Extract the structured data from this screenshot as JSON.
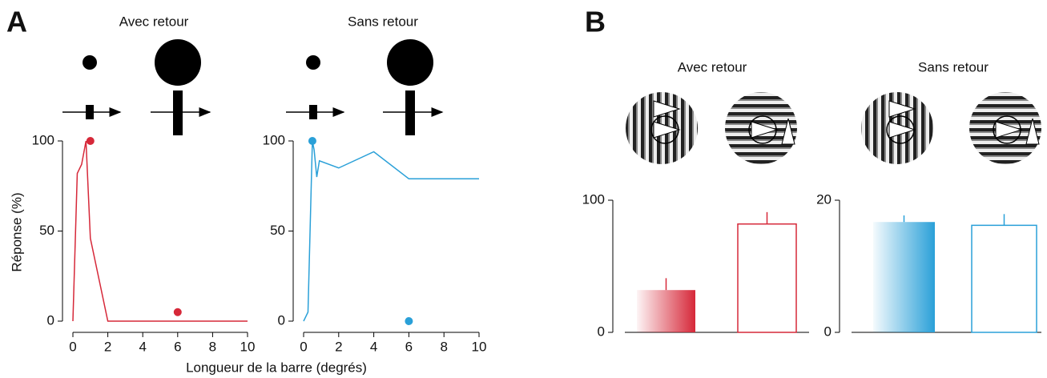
{
  "panel_labels": [
    "A",
    "B"
  ],
  "chart_data": [
    {
      "type": "line",
      "title": "Avec retour",
      "ylabel": "Réponse (%)",
      "xlabel": "Longueur de la barre (degrés)",
      "xlim": [
        0,
        10
      ],
      "xticks": [
        0,
        2,
        4,
        6,
        8,
        10
      ],
      "ylim": [
        0,
        100
      ],
      "yticks": [
        0,
        50,
        100
      ],
      "series": [
        {
          "color": "#d62839",
          "x": [
            0,
            0.25,
            0.5,
            0.75,
            1,
            2,
            10
          ],
          "values": [
            0,
            82,
            87,
            100,
            46,
            0,
            0
          ]
        }
      ],
      "points": {
        "color": "#d62839",
        "x": [
          1,
          6
        ],
        "values": [
          100,
          5
        ]
      }
    },
    {
      "type": "line",
      "title": "Sans retour",
      "xlim": [
        0,
        10
      ],
      "xticks": [
        0,
        2,
        4,
        6,
        8,
        10
      ],
      "ylim": [
        0,
        100
      ],
      "yticks": [
        0,
        50,
        100
      ],
      "series": [
        {
          "color": "#2aa0d8",
          "x": [
            0,
            0.25,
            0.5,
            0.6,
            0.75,
            0.9,
            2,
            4,
            6,
            10
          ],
          "values": [
            0,
            5,
            100,
            95,
            80,
            89,
            85,
            94,
            79,
            79
          ]
        }
      ],
      "points": {
        "color": "#2aa0d8",
        "x": [
          0.5,
          6
        ],
        "values": [
          100,
          0
        ]
      }
    },
    {
      "type": "bar",
      "title": "Avec retour",
      "ylim": [
        0,
        100
      ],
      "yticks": [
        0,
        100
      ],
      "color": "#d62839",
      "values": [
        32,
        82
      ],
      "errors": [
        9,
        9
      ],
      "fill_styles": [
        "gradient",
        "outline"
      ]
    },
    {
      "type": "bar",
      "title": "Sans retour",
      "ylim": [
        0,
        20
      ],
      "yticks": [
        0,
        20
      ],
      "color": "#2aa0d8",
      "values": [
        16.7,
        16.2
      ],
      "errors": [
        1,
        1.7
      ],
      "fill_styles": [
        "gradient",
        "outline"
      ]
    }
  ]
}
